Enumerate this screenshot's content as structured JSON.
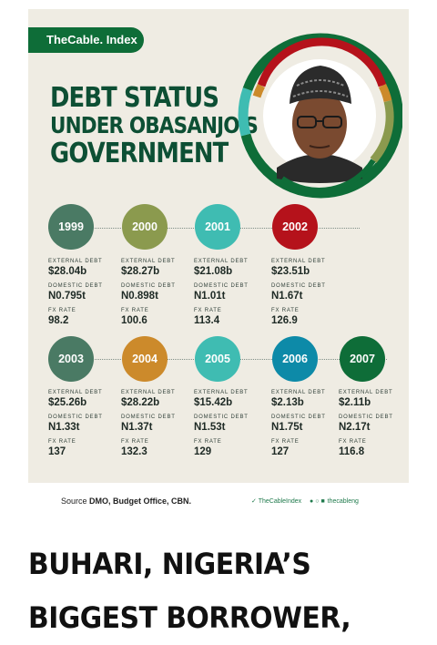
{
  "brand": {
    "label": "TheCable. Index"
  },
  "title": {
    "line1": "DEBT STATUS",
    "line2": "UNDER OBASANJO'S",
    "line3": "GOVERNMENT"
  },
  "portrait": {
    "icon": "portrait-photo-icon"
  },
  "labels": {
    "external": "EXTERNAL DEBT",
    "domestic": "DOMESTIC DEBT",
    "fx": "FX RATE"
  },
  "years": [
    {
      "year": "1999",
      "color": "#4a7a64",
      "external": "$28.04b",
      "domestic": "N0.795t",
      "fx": "98.2"
    },
    {
      "year": "2000",
      "color": "#8b9a4e",
      "external": "$28.27b",
      "domestic": "N0.898t",
      "fx": "100.6"
    },
    {
      "year": "2001",
      "color": "#3fbcb2",
      "external": "$21.08b",
      "domestic": "N1.01t",
      "fx": "113.4"
    },
    {
      "year": "2002",
      "color": "#b5121b",
      "external": "$23.51b",
      "domestic": "N1.67t",
      "fx": "126.9"
    },
    {
      "year": "2003",
      "color": "#4a7a64",
      "external": "$25.26b",
      "domestic": "N1.33t",
      "fx": "137"
    },
    {
      "year": "2004",
      "color": "#cc8a2b",
      "external": "$28.22b",
      "domestic": "N1.37t",
      "fx": "132.3"
    },
    {
      "year": "2005",
      "color": "#3fbcb2",
      "external": "$15.42b",
      "domestic": "N1.53t",
      "fx": "129"
    },
    {
      "year": "2006",
      "color": "#0d8aa8",
      "external": "$2.13b",
      "domestic": "N1.75t",
      "fx": "127"
    },
    {
      "year": "2007",
      "color": "#0e6d38",
      "external": "$2.11b",
      "domestic": "N2.17t",
      "fx": "116.8"
    }
  ],
  "footer": {
    "source_prefix": "Source",
    "source_text": "DMO, Budget Office, CBN.",
    "twitter": "TheCableIndex",
    "handle": "thecableng"
  },
  "headline": {
    "line1": "BUHARI, NIGERIA’S",
    "line2": "BIGGEST BORROWER,"
  }
}
